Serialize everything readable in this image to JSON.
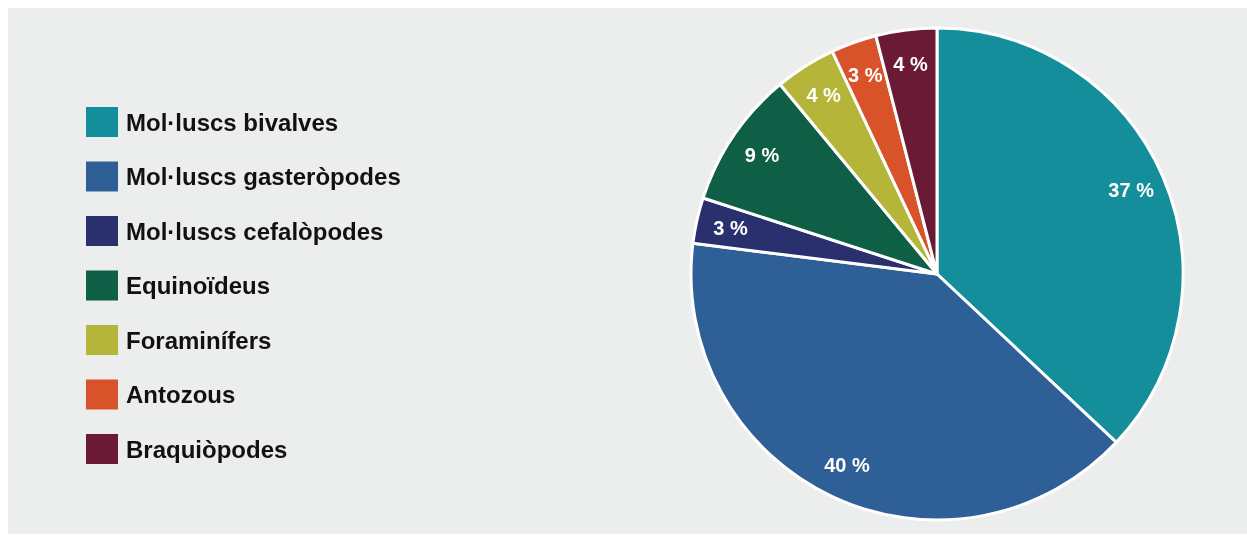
{
  "chart_data": {
    "type": "pie",
    "categories": [
      "Mol·luscs bivalves",
      "Mol·luscs gasteròpodes",
      "Mol·luscs cefalòpodes",
      "Equinoïdeus",
      "Foraminífers",
      "Antozous",
      "Braquiòpodes"
    ],
    "values": [
      37,
      40,
      3,
      9,
      4,
      3,
      4
    ],
    "colors": [
      "#138e9a",
      "#2e5f96",
      "#2a2f6e",
      "#0f5e46",
      "#b5b53a",
      "#d9532a",
      "#6b1a35"
    ],
    "value_labels": [
      "37 %",
      "40 %",
      "3 %",
      "9 %",
      "4 %",
      "3 %",
      "4 %"
    ],
    "legend": "left"
  }
}
